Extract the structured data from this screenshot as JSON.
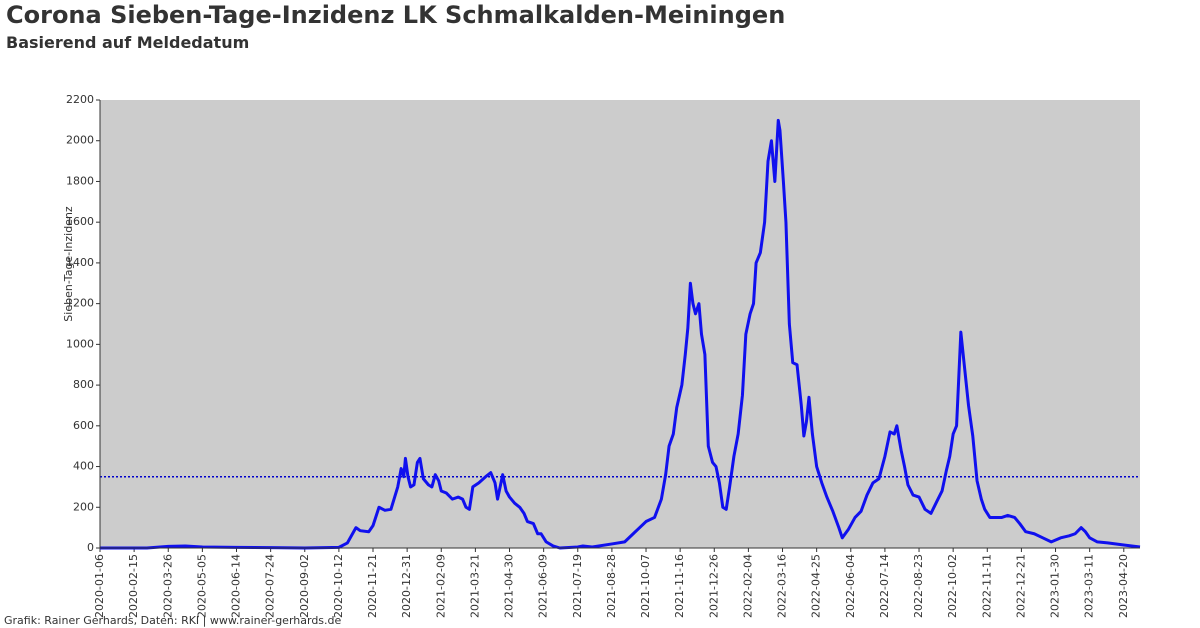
{
  "chart_data": {
    "type": "line",
    "title": "Corona Sieben-Tage-Inzidenz LK Schmalkalden-Meiningen",
    "subtitle": "Basierend auf Meldedatum",
    "ylabel": "Sieben-Tage-Inzidenz",
    "footer": "Grafik: Rainer Gerhards, Daten: RKI | www.rainer-gerhards.de",
    "xlim": [
      "2020-01-06",
      "2023-05-09"
    ],
    "xticks": [
      "2020-01-06",
      "2020-02-15",
      "2020-03-26",
      "2020-05-05",
      "2020-06-14",
      "2020-07-24",
      "2020-09-02",
      "2020-10-12",
      "2020-11-21",
      "2020-12-31",
      "2021-02-09",
      "2021-03-21",
      "2021-04-30",
      "2021-06-09",
      "2021-07-19",
      "2021-08-28",
      "2021-10-07",
      "2021-11-16",
      "2021-12-26",
      "2022-02-04",
      "2022-03-16",
      "2022-04-25",
      "2022-06-04",
      "2022-07-14",
      "2022-08-23",
      "2022-10-02",
      "2022-11-11",
      "2022-12-21",
      "2023-01-30",
      "2023-03-11",
      "2023-04-20"
    ],
    "ylim": [
      0,
      2200
    ],
    "yticks": [
      0,
      200,
      400,
      600,
      800,
      1000,
      1200,
      1400,
      1600,
      1800,
      2000,
      2200
    ],
    "reference_line": 350,
    "reference_color": "#0000cc",
    "background": "#cccccc",
    "x": [
      "2020-01-06",
      "2020-03-01",
      "2020-03-26",
      "2020-04-15",
      "2020-05-05",
      "2020-06-14",
      "2020-07-24",
      "2020-09-02",
      "2020-10-12",
      "2020-10-22",
      "2020-11-01",
      "2020-11-06",
      "2020-11-16",
      "2020-11-21",
      "2020-11-28",
      "2020-12-05",
      "2020-12-12",
      "2020-12-20",
      "2020-12-24",
      "2020-12-27",
      "2020-12-29",
      "2021-01-01",
      "2021-01-04",
      "2021-01-08",
      "2021-01-12",
      "2021-01-15",
      "2021-01-19",
      "2021-01-25",
      "2021-01-29",
      "2021-02-02",
      "2021-02-06",
      "2021-02-09",
      "2021-02-15",
      "2021-02-22",
      "2021-03-01",
      "2021-03-06",
      "2021-03-10",
      "2021-03-14",
      "2021-03-18",
      "2021-03-25",
      "2021-04-02",
      "2021-04-08",
      "2021-04-13",
      "2021-04-16",
      "2021-04-22",
      "2021-04-26",
      "2021-04-30",
      "2021-05-06",
      "2021-05-12",
      "2021-05-17",
      "2021-05-21",
      "2021-05-28",
      "2021-06-02",
      "2021-06-06",
      "2021-06-12",
      "2021-06-20",
      "2021-06-28",
      "2021-07-19",
      "2021-07-25",
      "2021-08-05",
      "2021-08-28",
      "2021-09-12",
      "2021-09-22",
      "2021-10-07",
      "2021-10-17",
      "2021-10-25",
      "2021-10-30",
      "2021-11-03",
      "2021-11-08",
      "2021-11-12",
      "2021-11-18",
      "2021-11-22",
      "2021-11-25",
      "2021-11-28",
      "2021-12-01",
      "2021-12-04",
      "2021-12-08",
      "2021-12-11",
      "2021-12-15",
      "2021-12-19",
      "2021-12-24",
      "2021-12-28",
      "2022-01-01",
      "2022-01-05",
      "2022-01-09",
      "2022-01-13",
      "2022-01-18",
      "2022-01-23",
      "2022-01-28",
      "2022-02-01",
      "2022-02-06",
      "2022-02-10",
      "2022-02-13",
      "2022-02-18",
      "2022-02-23",
      "2022-02-27",
      "2022-03-03",
      "2022-03-07",
      "2022-03-11",
      "2022-03-13",
      "2022-03-17",
      "2022-03-20",
      "2022-03-24",
      "2022-03-28",
      "2022-04-02",
      "2022-04-07",
      "2022-04-10",
      "2022-04-13",
      "2022-04-16",
      "2022-04-20",
      "2022-04-25",
      "2022-05-01",
      "2022-05-07",
      "2022-05-14",
      "2022-05-21",
      "2022-05-25",
      "2022-06-01",
      "2022-06-09",
      "2022-06-16",
      "2022-06-23",
      "2022-06-30",
      "2022-07-07",
      "2022-07-14",
      "2022-07-20",
      "2022-07-25",
      "2022-07-28",
      "2022-08-02",
      "2022-08-06",
      "2022-08-10",
      "2022-08-16",
      "2022-08-23",
      "2022-08-30",
      "2022-09-06",
      "2022-09-13",
      "2022-09-19",
      "2022-09-24",
      "2022-09-28",
      "2022-10-02",
      "2022-10-06",
      "2022-10-11",
      "2022-10-15",
      "2022-10-20",
      "2022-10-25",
      "2022-10-30",
      "2022-11-04",
      "2022-11-08",
      "2022-11-14",
      "2022-11-20",
      "2022-11-28",
      "2022-12-05",
      "2022-12-13",
      "2022-12-19",
      "2022-12-26",
      "2023-01-05",
      "2023-01-15",
      "2023-01-25",
      "2023-02-05",
      "2023-02-15",
      "2023-02-22",
      "2023-03-01",
      "2023-03-06",
      "2023-03-11",
      "2023-03-20",
      "2023-04-01",
      "2023-04-20",
      "2023-05-09"
    ],
    "series": [
      {
        "color": "#1010ee",
        "values": [
          0,
          0,
          8,
          10,
          5,
          3,
          2,
          0,
          3,
          25,
          100,
          85,
          80,
          110,
          200,
          185,
          190,
          300,
          390,
          350,
          440,
          350,
          300,
          310,
          420,
          440,
          340,
          310,
          300,
          360,
          330,
          280,
          270,
          240,
          250,
          240,
          200,
          190,
          300,
          320,
          350,
          370,
          320,
          240,
          360,
          280,
          250,
          220,
          200,
          170,
          130,
          120,
          70,
          70,
          30,
          10,
          0,
          5,
          10,
          5,
          20,
          30,
          70,
          130,
          150,
          240,
          360,
          500,
          560,
          690,
          800,
          950,
          1080,
          1300,
          1200,
          1150,
          1200,
          1050,
          950,
          500,
          420,
          400,
          320,
          200,
          190,
          300,
          450,
          560,
          750,
          1050,
          1150,
          1200,
          1400,
          1450,
          1600,
          1900,
          2000,
          1800,
          2100,
          2050,
          1800,
          1600,
          1100,
          910,
          900,
          700,
          550,
          620,
          740,
          560,
          400,
          320,
          250,
          180,
          100,
          50,
          90,
          150,
          180,
          260,
          320,
          340,
          450,
          570,
          560,
          600,
          480,
          400,
          310,
          260,
          250,
          190,
          170,
          230,
          280,
          380,
          450,
          560,
          600,
          1060,
          900,
          700,
          550,
          330,
          240,
          190,
          150,
          150,
          150,
          160,
          150,
          120,
          80,
          70,
          50,
          30,
          50,
          60,
          70,
          100,
          80,
          50,
          30,
          25,
          15,
          5
        ]
      }
    ]
  }
}
